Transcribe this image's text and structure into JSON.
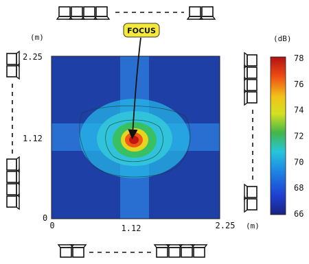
{
  "chart_data": {
    "type": "heatmap",
    "title": "",
    "x_unit": "(m)",
    "y_unit": "(m)",
    "x_ticks": [
      "0",
      "1.12",
      "2.25"
    ],
    "y_ticks": [
      "0",
      "1.12",
      "2.25"
    ],
    "xlim": [
      0,
      2.25
    ],
    "ylim": [
      0,
      2.25
    ],
    "colorbar": {
      "unit": "(dB)",
      "ticks": [
        66,
        68,
        70,
        72,
        74,
        76,
        78
      ],
      "range": [
        66,
        78
      ]
    },
    "annotation": {
      "label": "FOCUS",
      "x": 1.12,
      "y": 1.12
    },
    "peak": {
      "x": 1.12,
      "y": 1.12,
      "value": 78
    },
    "background_level": 66.8,
    "speaker_arrays": [
      {
        "side": "top",
        "left_group": 4,
        "right_group": 2
      },
      {
        "side": "bottom",
        "left_group": 2,
        "right_group": 4
      },
      {
        "side": "left",
        "top_group": 2,
        "bottom_group": 4
      },
      {
        "side": "right",
        "top_group": 4,
        "bottom_group": 2
      }
    ]
  }
}
